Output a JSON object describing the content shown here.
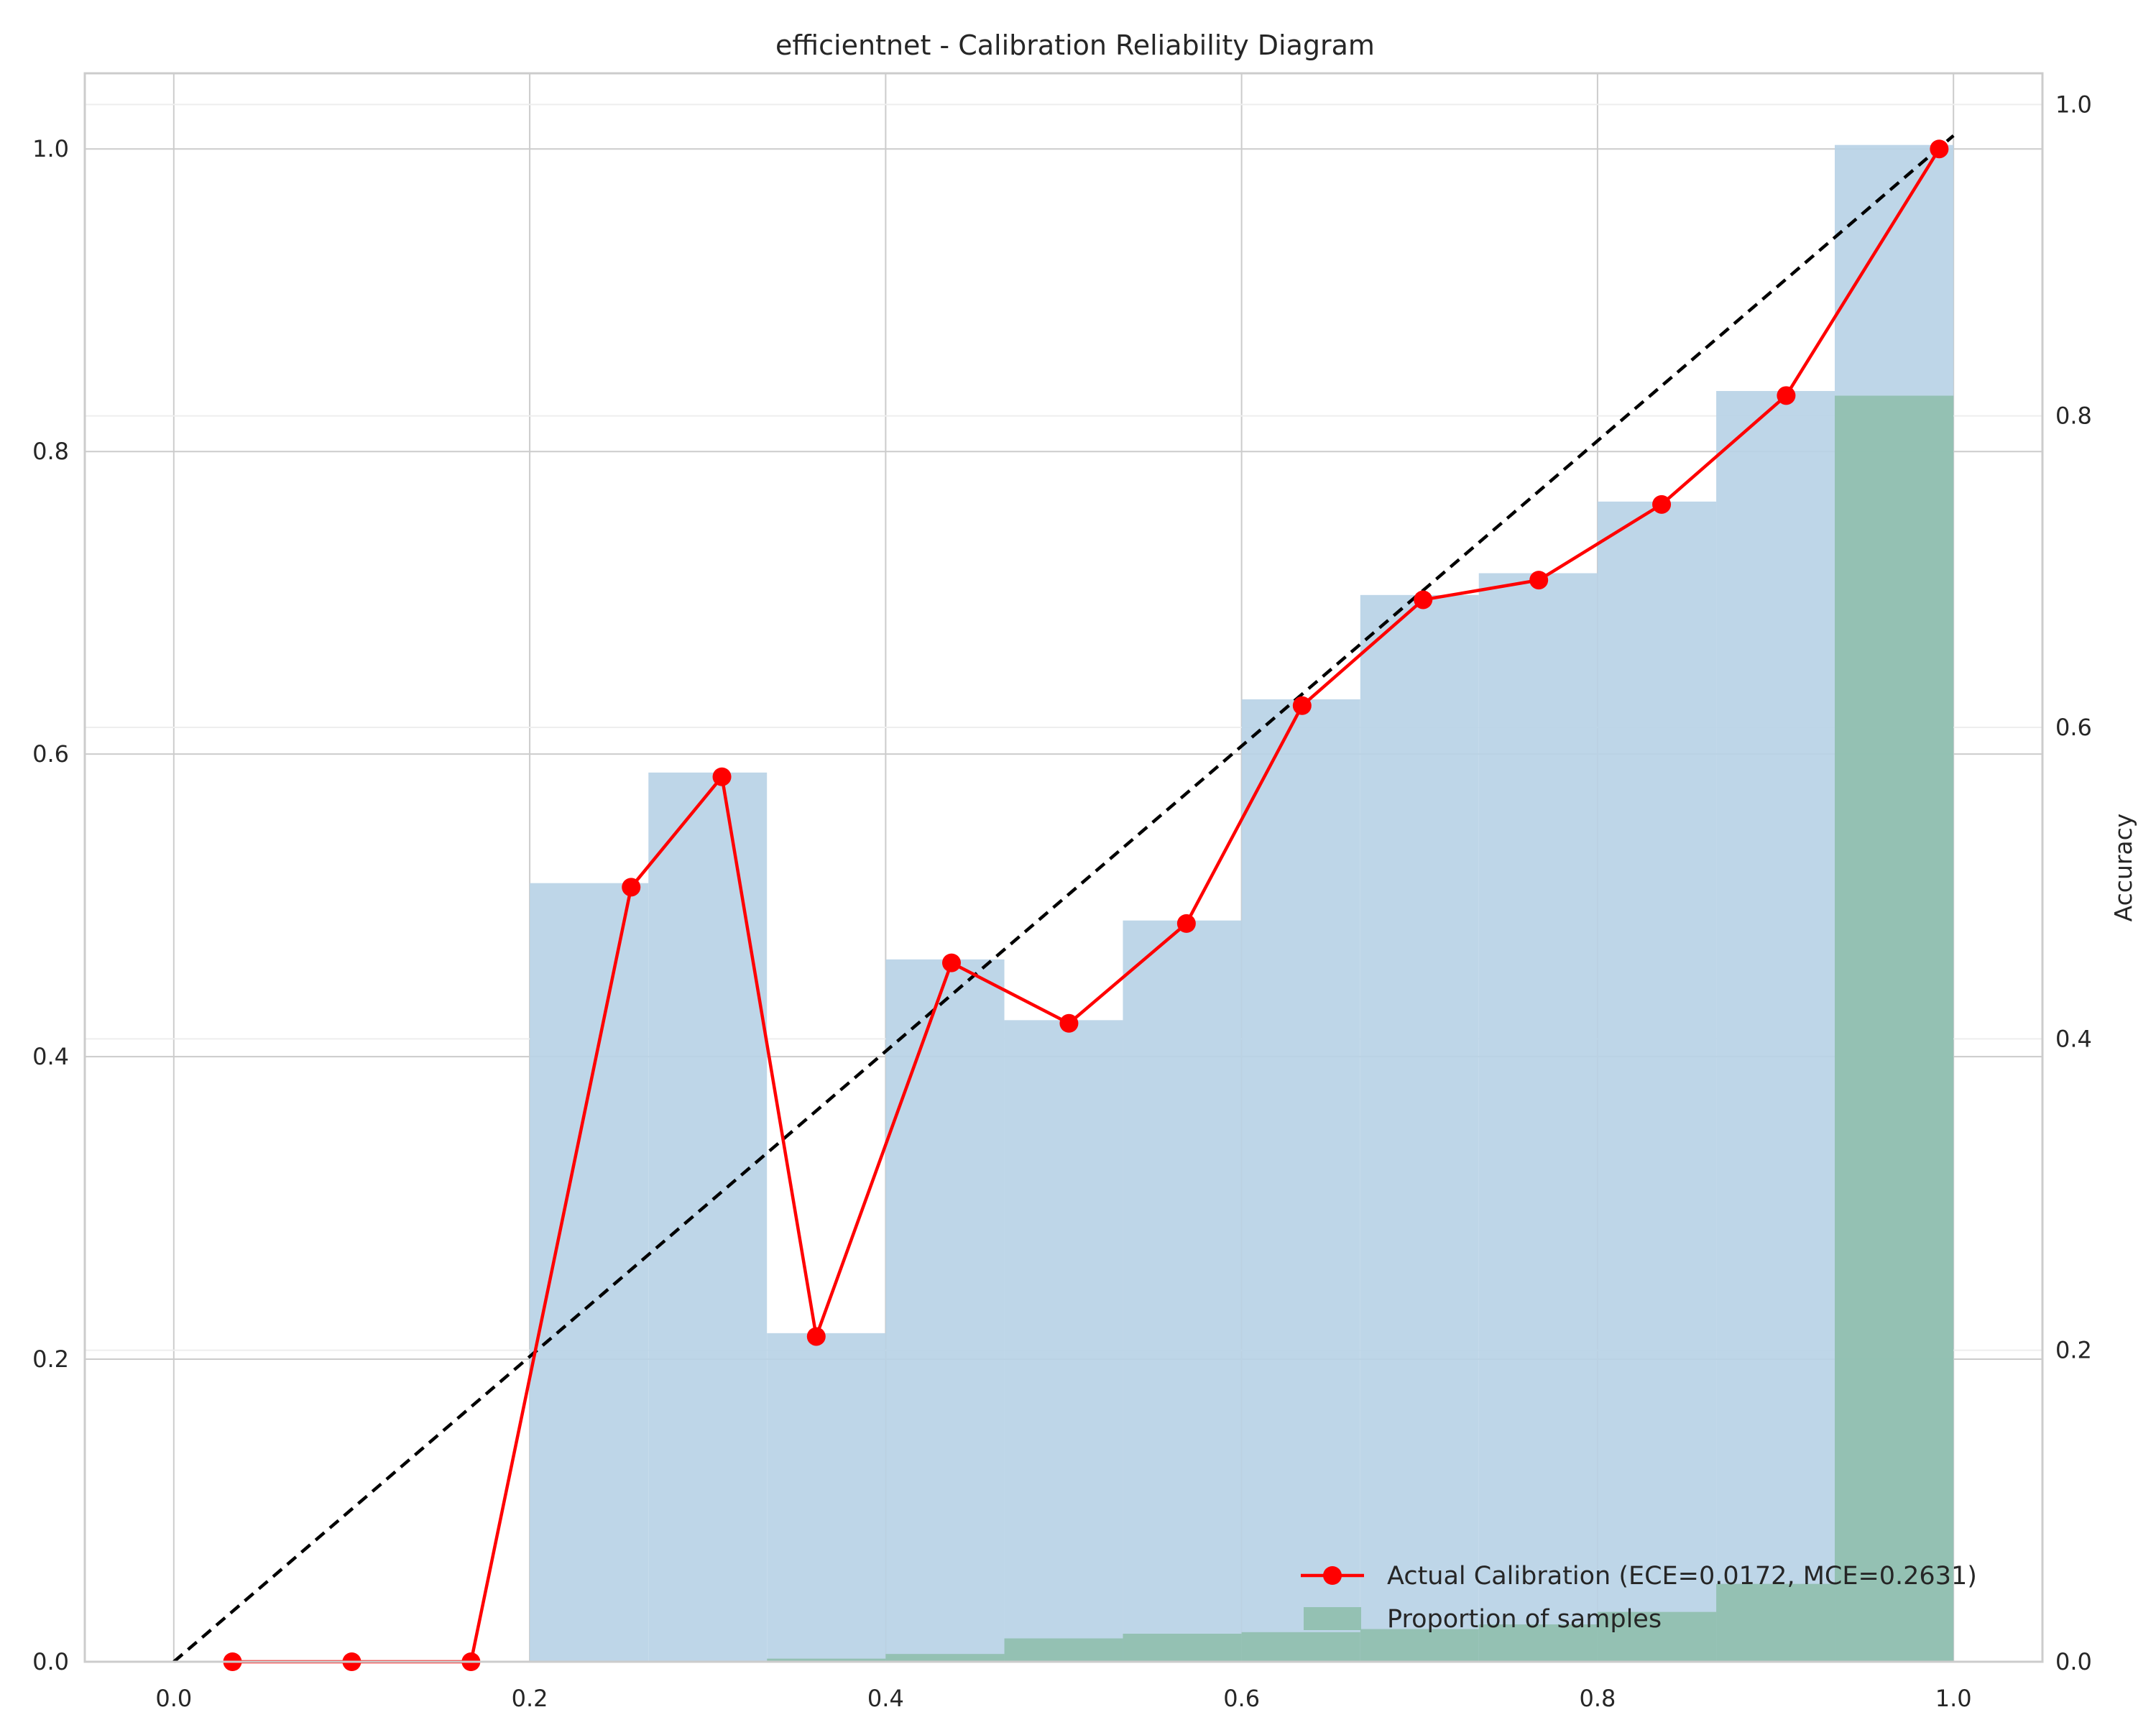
{
  "chart_data": {
    "type": "bar",
    "title": "efficientnet - Calibration Reliability Diagram",
    "xlabel": "",
    "ylabel": "",
    "y2label": "Accuracy",
    "xlim": [
      -0.05,
      1.05
    ],
    "ylim": [
      0,
      1.05
    ],
    "y2lim": [
      0,
      1.02
    ],
    "x_ticks": [
      "0.0",
      "0.2",
      "0.4",
      "0.6",
      "0.8",
      "1.0"
    ],
    "y_ticks": [
      "0.0",
      "0.2",
      "0.4",
      "0.6",
      "0.8",
      "1.0"
    ],
    "y2_ticks": [
      "0.0",
      "0.2",
      "0.4",
      "0.6",
      "0.8",
      "1.0"
    ],
    "grid": true,
    "legend_position": "lower-right",
    "bin_edges": [
      0.0,
      0.0667,
      0.1333,
      0.2,
      0.2667,
      0.3333,
      0.4,
      0.4667,
      0.5333,
      0.6,
      0.6667,
      0.7333,
      0.8,
      0.8667,
      0.9333,
      1.0
    ],
    "bin_accuracy": [
      0.0,
      0.0,
      0.0,
      0.5,
      0.571,
      0.211,
      0.451,
      0.412,
      0.476,
      0.618,
      0.685,
      0.699,
      0.745,
      0.816,
      0.974
    ],
    "bin_proportion": [
      0.0,
      0.0,
      0.0,
      0.0,
      0.0,
      0.002,
      0.005,
      0.015,
      0.018,
      0.019,
      0.021,
      0.024,
      0.032,
      0.05,
      0.813
    ],
    "series": [
      {
        "name": "Actual Calibration (ECE=0.0172, MCE=0.2631)",
        "x": [
          0.033,
          0.1,
          0.167,
          0.257,
          0.308,
          0.361,
          0.437,
          0.503,
          0.569,
          0.634,
          0.702,
          0.767,
          0.836,
          0.906,
          0.992
        ],
        "y": [
          0.0,
          0.0,
          0.0,
          0.512,
          0.585,
          0.215,
          0.462,
          0.422,
          0.488,
          0.632,
          0.702,
          0.715,
          0.765,
          0.837,
          1.0
        ],
        "color": "#ff0000"
      },
      {
        "name": "Proportion of samples",
        "color": "#8fbfad"
      }
    ],
    "colors": {
      "accuracy_bars": "#b8d3e6",
      "proportion_bars": "#8fbfad",
      "perfect_line": "#000000",
      "calibration_line": "#ff0000"
    }
  }
}
